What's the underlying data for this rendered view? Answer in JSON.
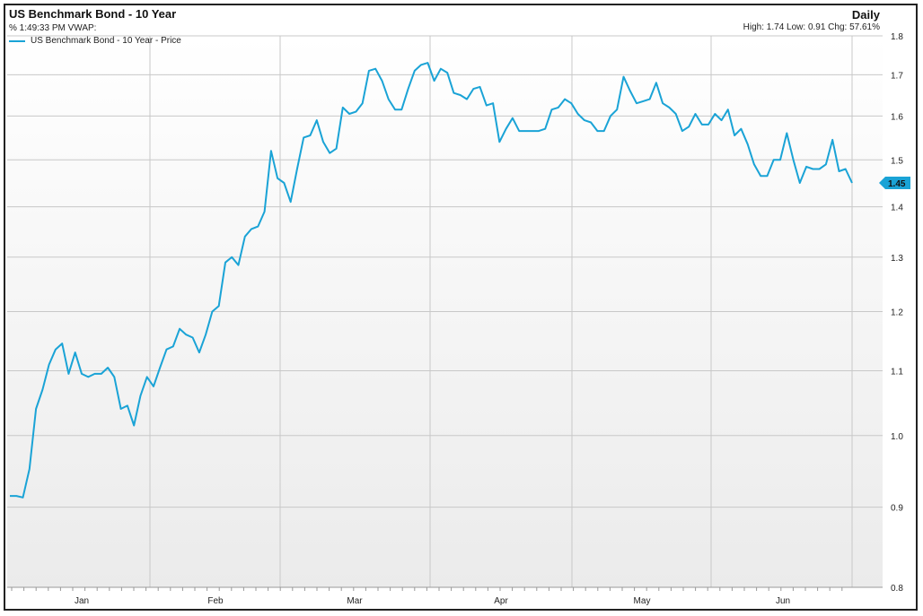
{
  "header": {
    "title": "US Benchmark Bond  - 10 Year",
    "frequency": "Daily",
    "vwap_label": "% 1:49:33 PM VWAP:",
    "stats": "High: 1.74 Low: 0.91 Chg: 57.61%",
    "legend_label": "US Benchmark Bond - 10 Year - Price"
  },
  "colors": {
    "series": "#1aa3d6",
    "grid": "#c8c8c8",
    "background_top": "#ffffff",
    "background_bottom": "#ececec"
  },
  "chart_data": {
    "type": "line",
    "title": "US Benchmark Bond  - 10 Year",
    "y_scale": "log",
    "ylim": [
      0.8,
      1.8
    ],
    "y_ticks": [
      0.8,
      0.9,
      1.0,
      1.1,
      1.2,
      1.3,
      1.4,
      1.5,
      1.6,
      1.7,
      1.8
    ],
    "y_tick_labels": [
      "0.8",
      "0.9",
      "1.0",
      "1.1",
      "1.2",
      "1.3",
      "1.4",
      "1.5",
      "1.6",
      "1.7",
      "1.8"
    ],
    "x_labels": [
      "Jan",
      "Feb",
      "Mar",
      "Apr",
      "May",
      "Jun"
    ],
    "last_value_label": "1.45",
    "grid": true,
    "series": [
      {
        "name": "US Benchmark Bond - 10 Year - Price",
        "values": [
          0.915,
          0.915,
          0.913,
          0.952,
          1.04,
          1.07,
          1.11,
          1.135,
          1.145,
          1.095,
          1.13,
          1.095,
          1.09,
          1.095,
          1.095,
          1.105,
          1.09,
          1.04,
          1.045,
          1.015,
          1.06,
          1.09,
          1.075,
          1.105,
          1.135,
          1.14,
          1.17,
          1.16,
          1.155,
          1.13,
          1.16,
          1.2,
          1.21,
          1.29,
          1.3,
          1.285,
          1.34,
          1.355,
          1.36,
          1.39,
          1.52,
          1.46,
          1.45,
          1.41,
          1.48,
          1.55,
          1.555,
          1.59,
          1.54,
          1.515,
          1.525,
          1.62,
          1.605,
          1.61,
          1.63,
          1.71,
          1.715,
          1.685,
          1.64,
          1.615,
          1.615,
          1.665,
          1.71,
          1.725,
          1.73,
          1.685,
          1.715,
          1.705,
          1.655,
          1.65,
          1.64,
          1.665,
          1.67,
          1.625,
          1.63,
          1.54,
          1.57,
          1.595,
          1.565,
          1.565,
          1.565,
          1.565,
          1.57,
          1.615,
          1.62,
          1.64,
          1.63,
          1.605,
          1.59,
          1.585,
          1.565,
          1.565,
          1.6,
          1.615,
          1.695,
          1.66,
          1.63,
          1.635,
          1.64,
          1.68,
          1.63,
          1.62,
          1.605,
          1.565,
          1.575,
          1.605,
          1.58,
          1.58,
          1.605,
          1.59,
          1.615,
          1.555,
          1.57,
          1.535,
          1.49,
          1.465,
          1.465,
          1.5,
          1.5,
          1.56,
          1.5,
          1.45,
          1.485,
          1.48,
          1.48,
          1.49,
          1.545,
          1.475,
          1.48,
          1.45
        ]
      }
    ]
  }
}
